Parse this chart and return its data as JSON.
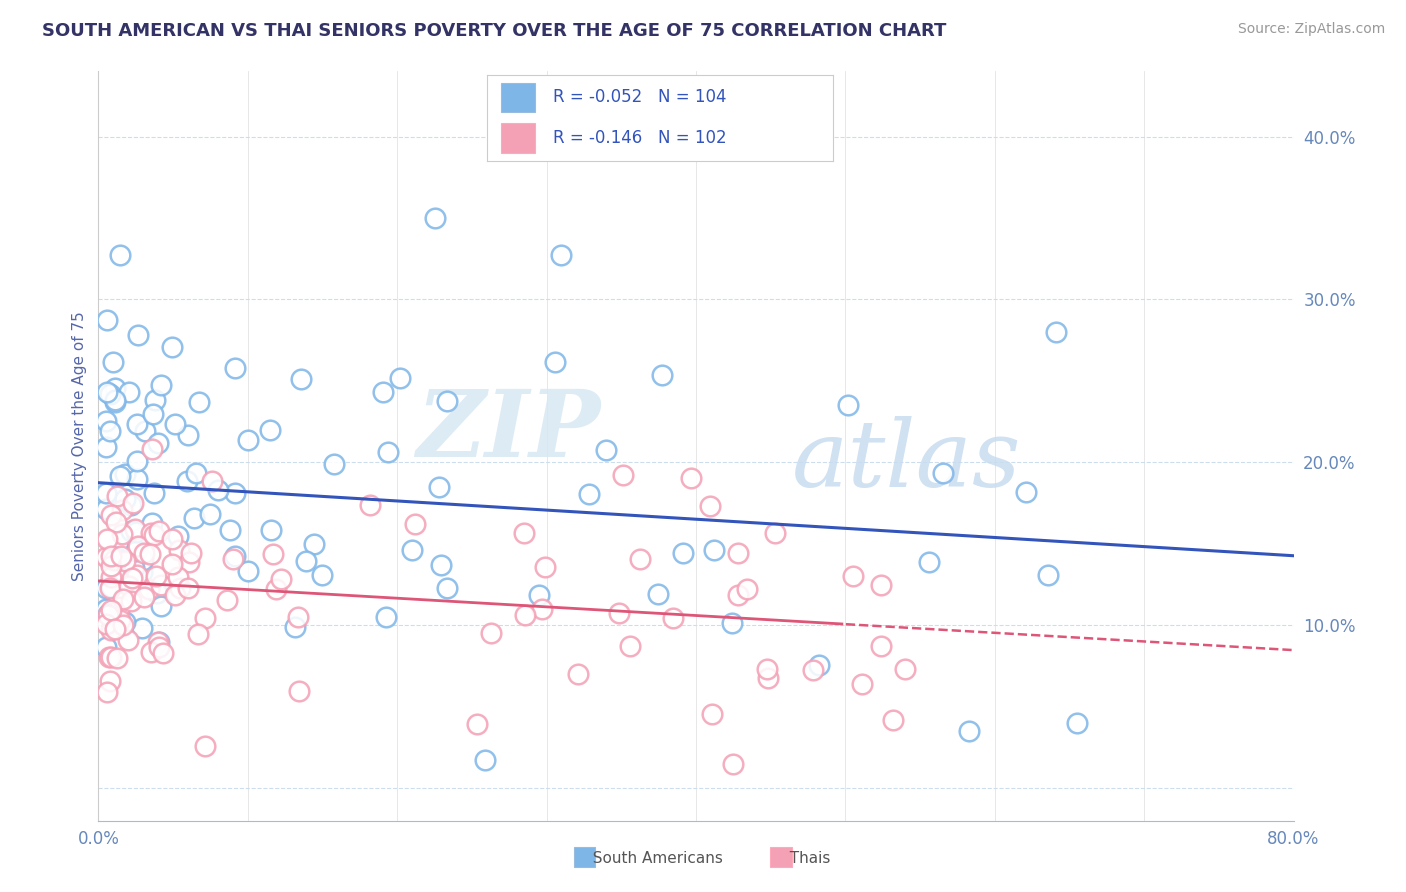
{
  "title": "SOUTH AMERICAN VS THAI SENIORS POVERTY OVER THE AGE OF 75 CORRELATION CHART",
  "source": "Source: ZipAtlas.com",
  "ylabel": "Seniors Poverty Over the Age of 75",
  "xlim": [
    0.0,
    0.8
  ],
  "ylim": [
    -0.02,
    0.44
  ],
  "yticks": [
    0.0,
    0.1,
    0.2,
    0.3,
    0.4
  ],
  "xticks": [
    0.0,
    0.1,
    0.2,
    0.3,
    0.4,
    0.5,
    0.6,
    0.7,
    0.8
  ],
  "r1": -0.052,
  "n1": 104,
  "r2": -0.146,
  "n2": 102,
  "color_sa": "#7EB6E8",
  "color_thai": "#F4A0B5",
  "line_color_sa": "#3355BB",
  "line_color_thai": "#DD5577",
  "background_color": "#FFFFFF",
  "grid_color": "#CCDDEE",
  "title_color": "#333366",
  "axis_label_color": "#5566AA",
  "tick_color": "#6688BB",
  "watermark_zip": "ZIP",
  "watermark_atlas": "atlas",
  "sa_line_start_y": 0.185,
  "sa_line_end_y": 0.168,
  "thai_line_start_y": 0.13,
  "thai_line_end_y": 0.095
}
